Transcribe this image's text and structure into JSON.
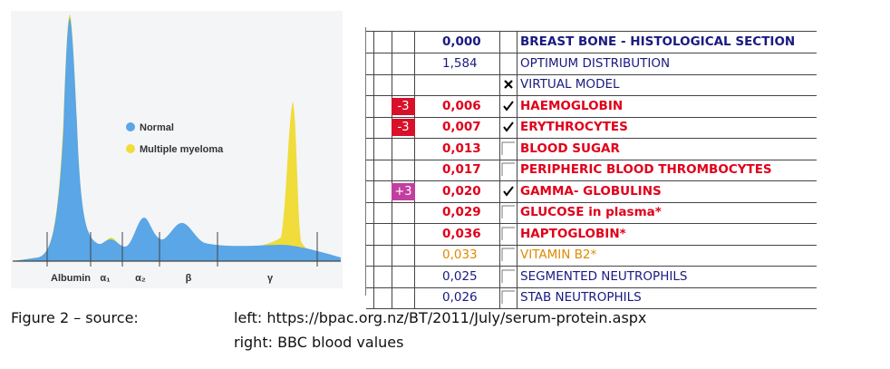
{
  "figure_left": {
    "legend": [
      "Normal",
      "Multiple myeloma"
    ],
    "axis_labels": [
      "Albumin",
      "α₁",
      "α₂",
      "β",
      "γ"
    ]
  },
  "table": {
    "rows": [
      {
        "value": "0,000",
        "label": "BREAST BONE - HISTOLOGICAL SECTION",
        "box": "none",
        "style": "header"
      },
      {
        "value": "1,584",
        "label": "OPTIMUM DISTRIBUTION",
        "box": "none",
        "style": "blue"
      },
      {
        "value": "",
        "label": "VIRTUAL MODEL",
        "box": "cross",
        "style": "blue"
      },
      {
        "badge": "-3",
        "value": "0,006",
        "label": "HAEMOGLOBIN",
        "box": "check",
        "style": "red"
      },
      {
        "badge": "-3",
        "value": "0,007",
        "label": "ERYTHROCYTES",
        "box": "check",
        "style": "red"
      },
      {
        "value": "0,013",
        "label": "BLOOD SUGAR",
        "box": "empty",
        "style": "red"
      },
      {
        "value": "0,017",
        "label": "PERIPHERIC BLOOD THROMBOCYTES",
        "box": "empty",
        "style": "red"
      },
      {
        "badge": "+3",
        "value": "0,020",
        "label": "GAMMA- GLOBULINS",
        "box": "check",
        "style": "red"
      },
      {
        "value": "0,029",
        "label": "GLUCOSE in plasma*",
        "box": "empty",
        "style": "red"
      },
      {
        "value": "0,036",
        "label": "HAPTOGLOBIN*",
        "box": "empty",
        "style": "red"
      },
      {
        "value": "0,033",
        "label": "VITAMIN B2*",
        "box": "empty",
        "style": "orange"
      },
      {
        "value": "0,025",
        "label": "SEGMENTED NEUTROPHILS",
        "box": "empty",
        "style": "blue"
      },
      {
        "value": "0,026",
        "label": "STAB NEUTROPHILS",
        "box": "empty",
        "style": "blue"
      }
    ]
  },
  "caption": {
    "label": "Figure 2 – source:",
    "left": "left: https://bpac.org.nz/BT/2011/July/serum-protein.aspx",
    "right": "right: BBC blood values"
  }
}
